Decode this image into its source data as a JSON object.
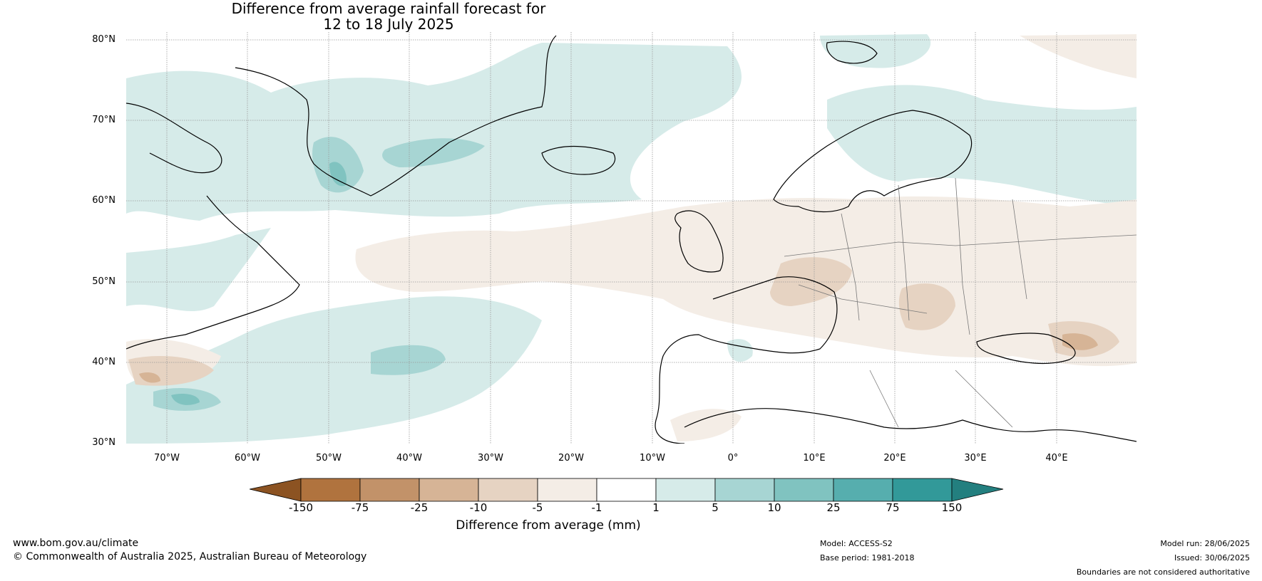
{
  "title_line1": "Difference from average rainfall forecast for",
  "title_line2": "12 to 18 July 2025",
  "lat_labels": [
    "80°N",
    "70°N",
    "60°N",
    "50°N",
    "40°N",
    "30°N"
  ],
  "lon_labels": [
    "70°W",
    "60°W",
    "50°W",
    "40°W",
    "30°W",
    "20°W",
    "10°W",
    "0°",
    "10°E",
    "20°E",
    "30°E",
    "40°E"
  ],
  "colorbar": {
    "ticks": [
      "-150",
      "-75",
      "-25",
      "-10",
      "-5",
      "-1",
      "1",
      "5",
      "10",
      "25",
      "75",
      "150"
    ],
    "label": "Difference from average (mm)",
    "colors": [
      "#8c5322",
      "#b0733e",
      "#c29269",
      "#d6b496",
      "#e6d3c2",
      "#f4ede6",
      "#ffffff",
      "#d6ebe9",
      "#a7d5d3",
      "#80c3c0",
      "#56aeae",
      "#329999",
      "#237f7f"
    ]
  },
  "footer": {
    "website": "www.bom.gov.au/climate",
    "copyright": "© Commonwealth of Australia 2025, Australian Bureau of Meteorology",
    "model": "Model: ACCESS-S2",
    "base_period": "Base period: 1981-2018",
    "model_run": "Model run: 28/06/2025",
    "issued": "Issued: 30/06/2025",
    "disclaimer": "Boundaries are not considered authoritative"
  }
}
